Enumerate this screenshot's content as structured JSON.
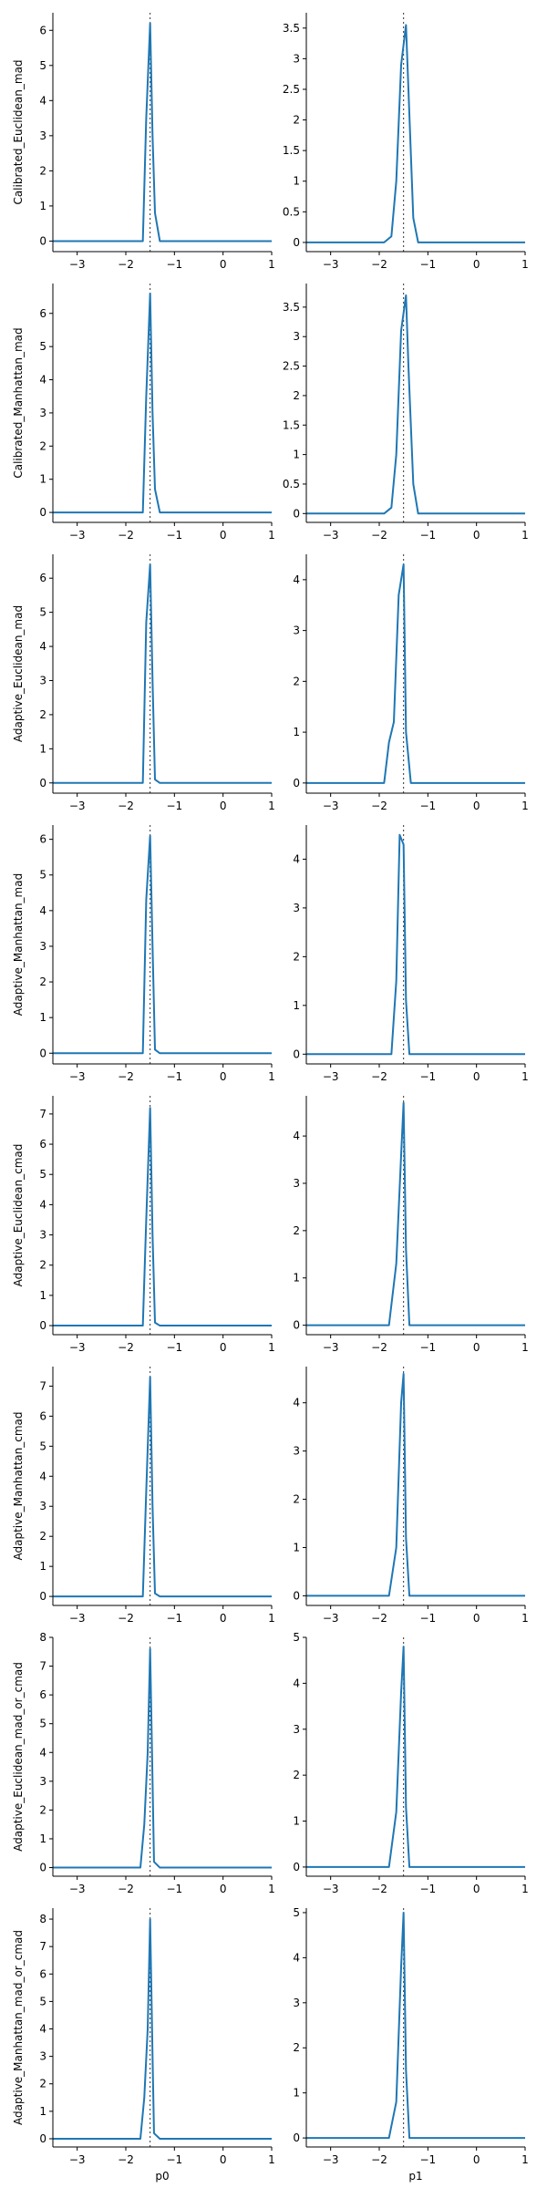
{
  "chart_data": [
    {
      "type": "line",
      "row_label": "Calibrated_Euclidean_mad",
      "panel": "p0",
      "xlabel": "",
      "xlim": [
        -3.5,
        1
      ],
      "xticks": [
        -3,
        -2,
        -1,
        0,
        1
      ],
      "ylim": [
        -0.3,
        6.5
      ],
      "yticks": [
        0,
        1,
        2,
        3,
        4,
        5,
        6
      ],
      "reference_x": -1.5,
      "x": [
        -3.5,
        -1.65,
        -1.58,
        -1.5,
        -1.45,
        -1.4,
        -1.3,
        -1.2,
        1
      ],
      "y": [
        0,
        0,
        3.5,
        6.2,
        3.0,
        0.8,
        0,
        0,
        0
      ]
    },
    {
      "type": "line",
      "row_label": "Calibrated_Euclidean_mad",
      "panel": "p1",
      "xlabel": "",
      "xlim": [
        -3.5,
        1
      ],
      "xticks": [
        -3,
        -2,
        -1,
        0,
        1
      ],
      "ylim": [
        -0.15,
        3.75
      ],
      "yticks": [
        0,
        0.5,
        1,
        1.5,
        2,
        2.5,
        3,
        3.5
      ],
      "reference_x": -1.5,
      "x": [
        -3.5,
        -1.9,
        -1.75,
        -1.65,
        -1.55,
        -1.45,
        -1.4,
        -1.3,
        -1.2,
        1
      ],
      "y": [
        0,
        0,
        0.1,
        1.0,
        2.9,
        3.55,
        2.5,
        0.4,
        0,
        0
      ]
    },
    {
      "type": "line",
      "row_label": "Calibrated_Manhattan_mad",
      "panel": "p0",
      "xlabel": "",
      "xlim": [
        -3.5,
        1
      ],
      "xticks": [
        -3,
        -2,
        -1,
        0,
        1
      ],
      "ylim": [
        -0.3,
        6.9
      ],
      "yticks": [
        0,
        1,
        2,
        3,
        4,
        5,
        6
      ],
      "reference_x": -1.5,
      "x": [
        -3.5,
        -1.65,
        -1.58,
        -1.5,
        -1.45,
        -1.4,
        -1.3,
        -1.2,
        1
      ],
      "y": [
        0,
        0,
        3.5,
        6.6,
        3.0,
        0.7,
        0,
        0,
        0
      ]
    },
    {
      "type": "line",
      "row_label": "Calibrated_Manhattan_mad",
      "panel": "p1",
      "xlabel": "",
      "xlim": [
        -3.5,
        1
      ],
      "xticks": [
        -3,
        -2,
        -1,
        0,
        1
      ],
      "ylim": [
        -0.15,
        3.9
      ],
      "yticks": [
        0,
        0.5,
        1,
        1.5,
        2,
        2.5,
        3,
        3.5
      ],
      "reference_x": -1.5,
      "x": [
        -3.5,
        -1.9,
        -1.75,
        -1.65,
        -1.55,
        -1.45,
        -1.4,
        -1.3,
        -1.2,
        1
      ],
      "y": [
        0,
        0,
        0.1,
        1.0,
        3.1,
        3.7,
        2.5,
        0.5,
        0,
        0
      ]
    },
    {
      "type": "line",
      "row_label": "Adaptive_Euclidean_mad",
      "panel": "p0",
      "xlabel": "",
      "xlim": [
        -3.5,
        1
      ],
      "xticks": [
        -3,
        -2,
        -1,
        0,
        1
      ],
      "ylim": [
        -0.3,
        6.7
      ],
      "yticks": [
        0,
        1,
        2,
        3,
        4,
        5,
        6
      ],
      "reference_x": -1.5,
      "x": [
        -3.5,
        -1.65,
        -1.58,
        -1.5,
        -1.45,
        -1.4,
        -1.3,
        -1.2,
        1
      ],
      "y": [
        0,
        0,
        4.7,
        6.4,
        3.0,
        0.1,
        0,
        0,
        0
      ]
    },
    {
      "type": "line",
      "row_label": "Adaptive_Euclidean_mad",
      "panel": "p1",
      "xlabel": "",
      "xlim": [
        -3.5,
        1
      ],
      "xticks": [
        -3,
        -2,
        -1,
        0,
        1
      ],
      "ylim": [
        -0.2,
        4.5
      ],
      "yticks": [
        0,
        1,
        2,
        3,
        4
      ],
      "reference_x": -1.5,
      "x": [
        -3.5,
        -1.9,
        -1.8,
        -1.7,
        -1.6,
        -1.5,
        -1.45,
        -1.35,
        -1.25,
        1
      ],
      "y": [
        0,
        0,
        0.8,
        1.2,
        3.7,
        4.3,
        1.0,
        0,
        0,
        0
      ]
    },
    {
      "type": "line",
      "row_label": "Adaptive_Manhattan_mad",
      "panel": "p0",
      "xlabel": "",
      "xlim": [
        -3.5,
        1
      ],
      "xticks": [
        -3,
        -2,
        -1,
        0,
        1
      ],
      "ylim": [
        -0.3,
        6.4
      ],
      "yticks": [
        0,
        1,
        2,
        3,
        4,
        5,
        6
      ],
      "reference_x": -1.5,
      "x": [
        -3.5,
        -1.65,
        -1.58,
        -1.5,
        -1.45,
        -1.4,
        -1.3,
        -1.2,
        1
      ],
      "y": [
        0,
        0,
        4.3,
        6.1,
        3.0,
        0.1,
        0,
        0,
        0
      ]
    },
    {
      "type": "line",
      "row_label": "Adaptive_Manhattan_mad",
      "panel": "p1",
      "xlabel": "",
      "xlim": [
        -3.5,
        1
      ],
      "xticks": [
        -3,
        -2,
        -1,
        0,
        1
      ],
      "ylim": [
        -0.2,
        4.7
      ],
      "yticks": [
        0,
        1,
        2,
        3,
        4
      ],
      "reference_x": -1.5,
      "x": [
        -3.5,
        -1.75,
        -1.65,
        -1.58,
        -1.5,
        -1.45,
        -1.38,
        -1.3,
        -1.2,
        1
      ],
      "y": [
        0,
        0,
        1.5,
        4.5,
        4.3,
        1.1,
        0,
        0,
        0,
        0
      ]
    },
    {
      "type": "line",
      "row_label": "Adaptive_Euclidean_cmad",
      "panel": "p0",
      "xlabel": "",
      "xlim": [
        -3.5,
        1
      ],
      "xticks": [
        -3,
        -2,
        -1,
        0,
        1
      ],
      "ylim": [
        -0.3,
        7.6
      ],
      "yticks": [
        0,
        1,
        2,
        3,
        4,
        5,
        6,
        7
      ],
      "reference_x": -1.5,
      "x": [
        -3.5,
        -1.65,
        -1.58,
        -1.5,
        -1.45,
        -1.4,
        -1.3,
        -1.2,
        1
      ],
      "y": [
        0,
        0,
        3.5,
        7.2,
        3.0,
        0.1,
        0,
        0,
        0
      ]
    },
    {
      "type": "line",
      "row_label": "Adaptive_Euclidean_cmad",
      "panel": "p1",
      "xlabel": "",
      "xlim": [
        -3.5,
        1
      ],
      "xticks": [
        -3,
        -2,
        -1,
        0,
        1
      ],
      "ylim": [
        -0.2,
        4.85
      ],
      "yticks": [
        0,
        1,
        2,
        3,
        4
      ],
      "reference_x": -1.5,
      "x": [
        -3.5,
        -1.8,
        -1.65,
        -1.55,
        -1.5,
        -1.45,
        -1.38,
        -1.3,
        -1.2,
        1
      ],
      "y": [
        0,
        0,
        1.3,
        3.6,
        4.7,
        1.6,
        0,
        0,
        0,
        0
      ]
    },
    {
      "type": "line",
      "row_label": "Adaptive_Manhattan_cmad",
      "panel": "p0",
      "xlabel": "",
      "xlim": [
        -3.5,
        1
      ],
      "xticks": [
        -3,
        -2,
        -1,
        0,
        1
      ],
      "ylim": [
        -0.3,
        7.65
      ],
      "yticks": [
        0,
        1,
        2,
        3,
        4,
        5,
        6,
        7
      ],
      "reference_x": -1.5,
      "x": [
        -3.5,
        -1.65,
        -1.58,
        -1.5,
        -1.45,
        -1.4,
        -1.3,
        -1.2,
        1
      ],
      "y": [
        0,
        0,
        3.5,
        7.3,
        3.0,
        0.1,
        0,
        0,
        0
      ]
    },
    {
      "type": "line",
      "row_label": "Adaptive_Manhattan_cmad",
      "panel": "p1",
      "xlabel": "",
      "xlim": [
        -3.5,
        1
      ],
      "xticks": [
        -3,
        -2,
        -1,
        0,
        1
      ],
      "ylim": [
        -0.2,
        4.75
      ],
      "yticks": [
        0,
        1,
        2,
        3,
        4
      ],
      "reference_x": -1.5,
      "x": [
        -3.5,
        -1.8,
        -1.65,
        -1.55,
        -1.5,
        -1.45,
        -1.38,
        -1.3,
        -1.2,
        1
      ],
      "y": [
        0,
        0,
        1.0,
        4.0,
        4.6,
        1.2,
        0,
        0,
        0,
        0
      ]
    },
    {
      "type": "line",
      "row_label": "Adaptive_Euclidean_mad_or_cmad",
      "panel": "p0",
      "xlabel": "",
      "xlim": [
        -3.5,
        1
      ],
      "xticks": [
        -3,
        -2,
        -1,
        0,
        1
      ],
      "ylim": [
        -0.3,
        8.0
      ],
      "yticks": [
        0,
        1,
        2,
        3,
        4,
        5,
        6,
        7,
        8
      ],
      "reference_x": -1.5,
      "x": [
        -3.5,
        -1.7,
        -1.62,
        -1.55,
        -1.5,
        -1.45,
        -1.42,
        -1.3,
        -1.2,
        1
      ],
      "y": [
        0,
        0,
        1.5,
        4.0,
        7.6,
        3.0,
        0.2,
        0,
        0,
        0
      ]
    },
    {
      "type": "line",
      "row_label": "Adaptive_Euclidean_mad_or_cmad",
      "panel": "p1",
      "xlabel": "",
      "xlim": [
        -3.5,
        1
      ],
      "xticks": [
        -3,
        -2,
        -1,
        0,
        1
      ],
      "ylim": [
        -0.2,
        5.0
      ],
      "yticks": [
        0,
        1,
        2,
        3,
        4,
        5
      ],
      "reference_x": -1.5,
      "x": [
        -3.5,
        -1.8,
        -1.65,
        -1.55,
        -1.5,
        -1.45,
        -1.38,
        -1.3,
        -1.2,
        1
      ],
      "y": [
        0,
        0,
        1.2,
        3.8,
        4.8,
        1.3,
        0,
        0,
        0,
        0
      ]
    },
    {
      "type": "line",
      "row_label": "Adaptive_Manhattan_mad_or_cmad",
      "panel": "p0",
      "xlabel": "p0",
      "xlim": [
        -3.5,
        1
      ],
      "xticks": [
        -3,
        -2,
        -1,
        0,
        1
      ],
      "ylim": [
        -0.3,
        8.4
      ],
      "yticks": [
        0,
        1,
        2,
        3,
        4,
        5,
        6,
        7,
        8
      ],
      "reference_x": -1.5,
      "x": [
        -3.5,
        -1.7,
        -1.62,
        -1.55,
        -1.5,
        -1.45,
        -1.42,
        -1.3,
        -1.2,
        1
      ],
      "y": [
        0,
        0,
        1.5,
        4.0,
        8.0,
        3.0,
        0.2,
        0,
        0,
        0
      ]
    },
    {
      "type": "line",
      "row_label": "Adaptive_Manhattan_mad_or_cmad",
      "panel": "p1",
      "xlabel": "p1",
      "xlim": [
        -3.5,
        1
      ],
      "xticks": [
        -3,
        -2,
        -1,
        0,
        1
      ],
      "ylim": [
        -0.2,
        5.1
      ],
      "yticks": [
        0,
        1,
        2,
        3,
        4,
        5
      ],
      "reference_x": -1.5,
      "x": [
        -3.5,
        -1.8,
        -1.65,
        -1.55,
        -1.5,
        -1.45,
        -1.38,
        -1.3,
        -1.2,
        1
      ],
      "y": [
        0,
        0,
        0.8,
        3.8,
        5.0,
        1.5,
        0,
        0,
        0,
        0
      ]
    }
  ],
  "style": {
    "line_color": "#1f77b4",
    "ref_color": "#333333"
  }
}
